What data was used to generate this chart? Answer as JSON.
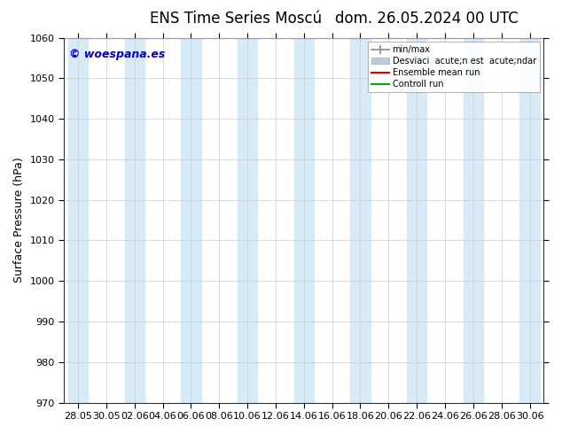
{
  "title_left": "ENS Time Series Moscú",
  "title_right": "dom. 26.05.2024 00 UTC",
  "ylabel": "Surface Pressure (hPa)",
  "ylim": [
    970,
    1060
  ],
  "yticks": [
    970,
    980,
    990,
    1000,
    1010,
    1020,
    1030,
    1040,
    1050,
    1060
  ],
  "xtick_labels": [
    "28.05",
    "30.05",
    "02.06",
    "04.06",
    "06.06",
    "08.06",
    "10.06",
    "12.06",
    "14.06",
    "16.06",
    "18.06",
    "20.06",
    "22.06",
    "24.06",
    "26.06",
    "28.06",
    "30.06"
  ],
  "band_color": "#d6eaf8",
  "bg_color": "#ffffff",
  "watermark": "© woespana.es",
  "watermark_color": "#0000cc",
  "title_fontsize": 12,
  "ylabel_fontsize": 9,
  "tick_fontsize": 8,
  "legend_fontsize": 7,
  "minmax_color": "#888888",
  "std_color": "#bbccdd",
  "mean_color": "#dd0000",
  "ctrl_color": "#00aa00",
  "band_indices": [
    0,
    2,
    4,
    6,
    8,
    10,
    12,
    14,
    16
  ]
}
